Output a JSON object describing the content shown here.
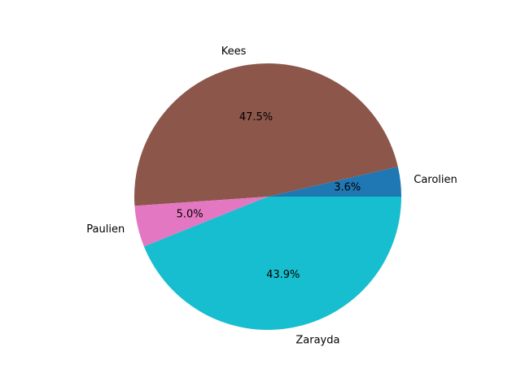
{
  "chart_data": {
    "type": "pie",
    "categories": [
      "Carolien",
      "Kees",
      "Paulien",
      "Zarayda"
    ],
    "values": [
      3.6,
      47.5,
      5.0,
      43.9
    ],
    "value_labels": [
      "3.6%",
      "47.5%",
      "5.0%",
      "43.9%"
    ],
    "colors": [
      "#1f77b4",
      "#8c564b",
      "#e377c2",
      "#17becf"
    ],
    "start_angle": 0,
    "direction": "counterclockwise",
    "grid": false,
    "legend": "none"
  }
}
